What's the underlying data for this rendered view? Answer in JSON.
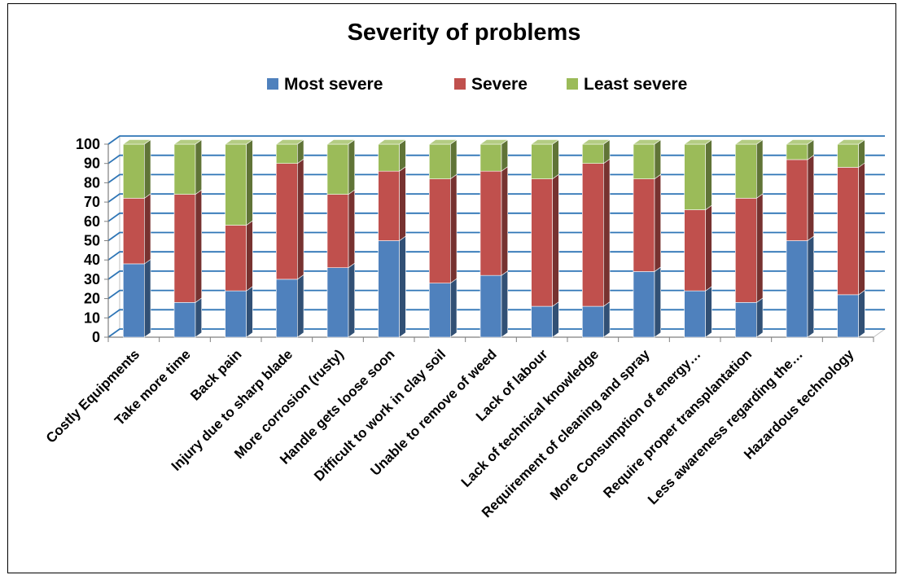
{
  "chart_data": {
    "type": "bar",
    "stacked": true,
    "three_d": true,
    "title": "Severity of problems",
    "legend_position": "top",
    "grid": true,
    "ylim": [
      0,
      100
    ],
    "yticks": [
      0,
      10,
      20,
      30,
      40,
      50,
      60,
      70,
      80,
      90,
      100
    ],
    "categories": [
      "Costly Equipments",
      "Take more time",
      "Back pain",
      "Injury due to sharp blade",
      "More corrosion (rusty)",
      "Handle gets loose soon",
      "Difficult to work in clay soil",
      "Unable to remove of weed",
      "Lack of labour",
      "Lack of technical knowledge",
      "Requirement of cleaning and spray",
      "More Consumption of energy…",
      "Require proper transplantation",
      "Less awareness regarding the…",
      "Hazardous technology"
    ],
    "series": [
      {
        "name": "Most severe",
        "color": "#4f81bd",
        "values": [
          38,
          18,
          24,
          30,
          36,
          50,
          28,
          32,
          16,
          16,
          34,
          24,
          18,
          50,
          22
        ]
      },
      {
        "name": "Severe",
        "color": "#c0504d",
        "values": [
          34,
          56,
          34,
          60,
          38,
          36,
          54,
          54,
          66,
          74,
          48,
          42,
          54,
          42,
          66
        ]
      },
      {
        "name": "Least severe",
        "color": "#9bbb59",
        "values": [
          28,
          26,
          42,
          10,
          26,
          14,
          18,
          14,
          18,
          10,
          18,
          34,
          28,
          8,
          12
        ]
      }
    ]
  }
}
